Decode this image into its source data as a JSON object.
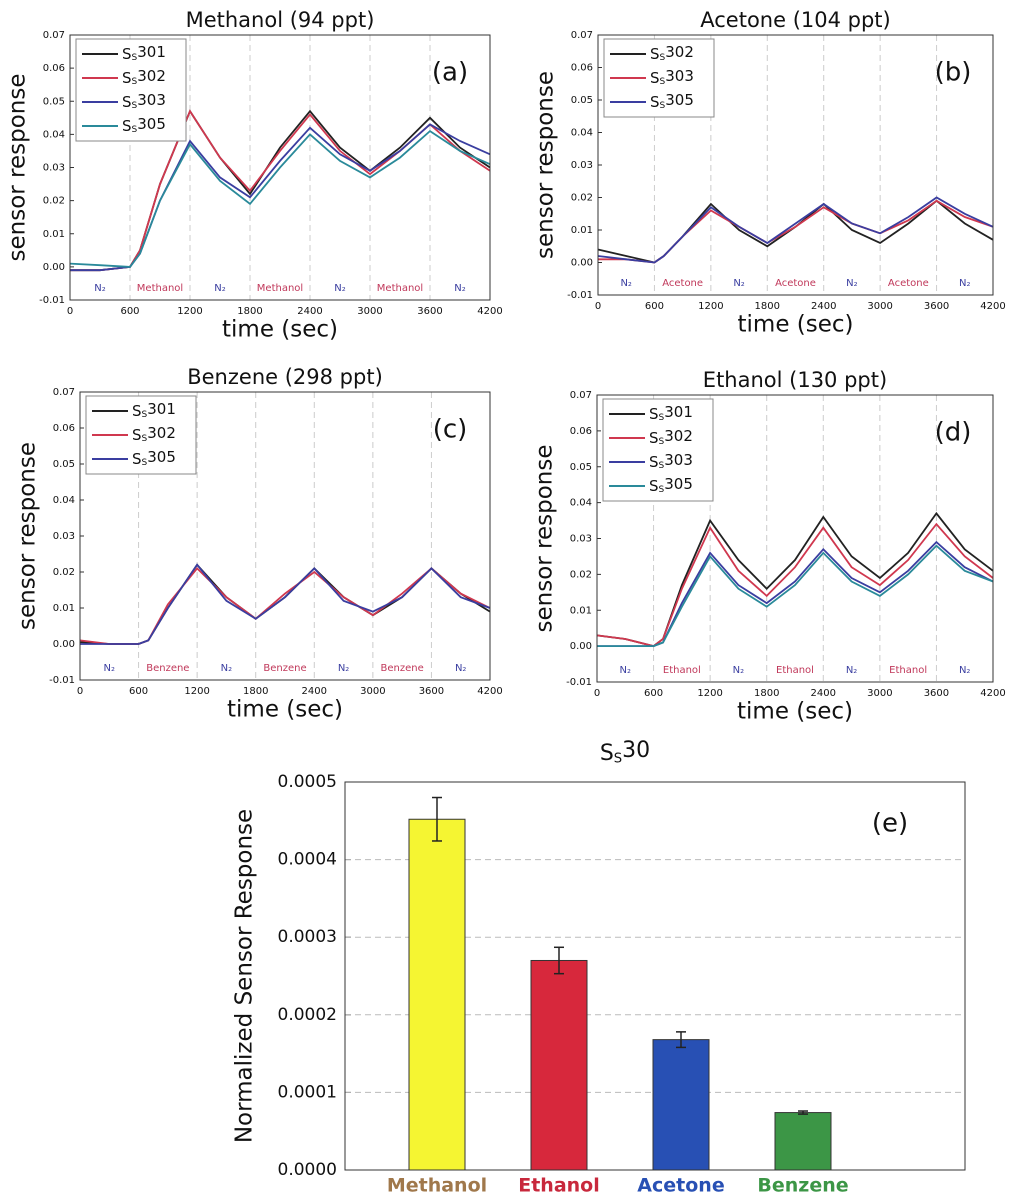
{
  "chart_data": [
    {
      "type": "line",
      "title": "Methanol (94 ppt)",
      "panel_label": "(a)",
      "x_label": "time (sec)",
      "y_label": "sensor response",
      "x": [
        0,
        300,
        600,
        700,
        900,
        1200,
        1500,
        1800,
        2100,
        2400,
        2700,
        3000,
        3300,
        3600,
        3900,
        4200
      ],
      "series": [
        {
          "name": "SS301",
          "color": "#222222",
          "values": [
            -0.001,
            -0.001,
            0,
            0.005,
            0.025,
            0.047,
            0.033,
            0.022,
            0.036,
            0.047,
            0.036,
            0.029,
            0.036,
            0.045,
            0.036,
            0.03
          ]
        },
        {
          "name": "SS302",
          "color": "#d0384f",
          "values": [
            -0.001,
            -0.001,
            0,
            0.005,
            0.025,
            0.047,
            0.033,
            0.023,
            0.035,
            0.046,
            0.035,
            0.028,
            0.035,
            0.043,
            0.035,
            0.029
          ]
        },
        {
          "name": "SS303",
          "color": "#3a3ea0",
          "values": [
            -0.001,
            -0.001,
            0,
            0.004,
            0.02,
            0.038,
            0.027,
            0.021,
            0.032,
            0.042,
            0.034,
            0.029,
            0.035,
            0.043,
            0.038,
            0.034
          ]
        },
        {
          "name": "SS305",
          "color": "#2a8a9a",
          "values": [
            0.001,
            0.0005,
            0,
            0.004,
            0.02,
            0.037,
            0.026,
            0.019,
            0.03,
            0.04,
            0.032,
            0.027,
            0.033,
            0.041,
            0.035,
            0.031
          ]
        }
      ],
      "phase_labels": [
        "N₂",
        "Methanol",
        "N₂",
        "Methanol",
        "N₂",
        "Methanol",
        "N₂"
      ],
      "xlim": [
        0,
        4200
      ],
      "xticks": [
        0,
        600,
        1200,
        1800,
        2400,
        3000,
        3600,
        4200
      ],
      "ylim": [
        -0.01,
        0.07
      ],
      "yticks": [
        -0.01,
        {
          "value": 0,
          "label": "0.00"
        },
        0.01,
        0.02,
        0.03,
        0.04,
        0.05,
        0.06,
        0.07
      ],
      "grid": true
    },
    {
      "type": "line",
      "title": "Acetone (104 ppt)",
      "panel_label": "(b)",
      "x_label": "time (sec)",
      "y_label": "sensor response",
      "x": [
        0,
        300,
        600,
        700,
        900,
        1200,
        1500,
        1800,
        2100,
        2400,
        2700,
        3000,
        3300,
        3600,
        3900,
        4200
      ],
      "series": [
        {
          "name": "SS302",
          "color": "#222222",
          "values": [
            0.004,
            0.002,
            0,
            0.002,
            0.008,
            0.018,
            0.01,
            0.005,
            0.011,
            0.018,
            0.01,
            0.006,
            0.012,
            0.019,
            0.012,
            0.007
          ]
        },
        {
          "name": "SS303",
          "color": "#d0384f",
          "values": [
            0.001,
            0.001,
            0,
            0.002,
            0.008,
            0.016,
            0.011,
            0.006,
            0.011,
            0.017,
            0.012,
            0.009,
            0.013,
            0.019,
            0.014,
            0.011
          ]
        },
        {
          "name": "SS305",
          "color": "#3a3ea0",
          "values": [
            0.002,
            0.001,
            0,
            0.002,
            0.008,
            0.017,
            0.011,
            0.006,
            0.012,
            0.018,
            0.012,
            0.009,
            0.014,
            0.02,
            0.015,
            0.011
          ]
        }
      ],
      "phase_labels": [
        "N₂",
        "Acetone",
        "N₂",
        "Acetone",
        "N₂",
        "Acetone",
        "N₂"
      ],
      "xlim": [
        0,
        4200
      ],
      "xticks": [
        0,
        600,
        1200,
        1800,
        2400,
        3000,
        3600,
        4200
      ],
      "ylim": [
        -0.01,
        0.07
      ],
      "yticks": [
        -0.01,
        {
          "value": 0,
          "label": "0.00"
        },
        0.01,
        0.02,
        0.03,
        0.04,
        0.05,
        0.06,
        0.07
      ],
      "grid": true
    },
    {
      "type": "line",
      "title": "Benzene (298 ppt)",
      "panel_label": "(c)",
      "x_label": "time (sec)",
      "y_label": "sensor response",
      "x": [
        0,
        300,
        600,
        700,
        900,
        1200,
        1500,
        1800,
        2100,
        2400,
        2700,
        3000,
        3300,
        3600,
        3900,
        4200
      ],
      "series": [
        {
          "name": "SS301",
          "color": "#222222",
          "values": [
            0.0005,
            0,
            0,
            0.001,
            0.01,
            0.022,
            0.013,
            0.007,
            0.013,
            0.021,
            0.013,
            0.008,
            0.013,
            0.021,
            0.014,
            0.009
          ]
        },
        {
          "name": "SS302",
          "color": "#d0384f",
          "values": [
            0.001,
            0,
            0,
            0.001,
            0.011,
            0.021,
            0.013,
            0.007,
            0.014,
            0.02,
            0.013,
            0.008,
            0.014,
            0.021,
            0.014,
            0.01
          ]
        },
        {
          "name": "SS305",
          "color": "#3a3ea0",
          "values": [
            0,
            0,
            0,
            0.001,
            0.01,
            0.022,
            0.012,
            0.007,
            0.013,
            0.021,
            0.012,
            0.009,
            0.013,
            0.021,
            0.013,
            0.01
          ]
        }
      ],
      "phase_labels": [
        "N₂",
        "Benzene",
        "N₂",
        "Benzene",
        "N₂",
        "Benzene",
        "N₂"
      ],
      "xlim": [
        0,
        4200
      ],
      "xticks": [
        0,
        600,
        1200,
        1800,
        2400,
        3000,
        3600,
        4200
      ],
      "ylim": [
        -0.01,
        0.07
      ],
      "yticks": [
        -0.01,
        {
          "value": 0,
          "label": "0.00"
        },
        0.01,
        0.02,
        0.03,
        0.04,
        0.05,
        0.06,
        0.07
      ],
      "grid": true
    },
    {
      "type": "line",
      "title": "Ethanol (130 ppt)",
      "panel_label": "(d)",
      "x_label": "time (sec)",
      "y_label": "sensor response",
      "x": [
        0,
        300,
        600,
        700,
        900,
        1200,
        1500,
        1800,
        2100,
        2400,
        2700,
        3000,
        3300,
        3600,
        3900,
        4200
      ],
      "series": [
        {
          "name": "SS301",
          "color": "#222222",
          "values": [
            0.003,
            0.002,
            0,
            0.002,
            0.017,
            0.035,
            0.024,
            0.016,
            0.024,
            0.036,
            0.025,
            0.019,
            0.026,
            0.037,
            0.027,
            0.021
          ]
        },
        {
          "name": "SS302",
          "color": "#d0384f",
          "values": [
            0.003,
            0.002,
            0,
            0.002,
            0.016,
            0.033,
            0.021,
            0.014,
            0.022,
            0.033,
            0.022,
            0.017,
            0.024,
            0.034,
            0.025,
            0.019
          ]
        },
        {
          "name": "SS303",
          "color": "#3a3ea0",
          "values": [
            0,
            0,
            0,
            0.001,
            0.012,
            0.026,
            0.017,
            0.012,
            0.018,
            0.027,
            0.019,
            0.015,
            0.021,
            0.029,
            0.022,
            0.018
          ]
        },
        {
          "name": "SS305",
          "color": "#2a8a9a",
          "values": [
            0,
            0,
            0,
            0.001,
            0.011,
            0.025,
            0.016,
            0.011,
            0.017,
            0.026,
            0.018,
            0.014,
            0.02,
            0.028,
            0.021,
            0.018
          ]
        }
      ],
      "phase_labels": [
        "N₂",
        "Ethanol",
        "N₂",
        "Ethanol",
        "N₂",
        "Ethanol",
        "N₂"
      ],
      "xlim": [
        0,
        4200
      ],
      "xticks": [
        0,
        600,
        1200,
        1800,
        2400,
        3000,
        3600,
        4200
      ],
      "ylim": [
        -0.01,
        0.07
      ],
      "yticks": [
        -0.01,
        {
          "value": 0,
          "label": "0.00"
        },
        0.01,
        0.02,
        0.03,
        0.04,
        0.05,
        0.06,
        0.07
      ],
      "grid": true
    },
    {
      "type": "bar",
      "title": "SS30",
      "panel_label": "(e)",
      "y_label": "Normalized Sensor Response",
      "categories": [
        "Methanol",
        "Ethanol",
        "Acetone",
        "Benzene"
      ],
      "values": [
        0.000452,
        0.00027,
        0.000168,
        7.4e-05
      ],
      "errors": [
        2.8e-05,
        1.7e-05,
        1e-05,
        2e-06
      ],
      "colors": [
        "#f5f532",
        "#d7283c",
        "#2850b4",
        "#3c9646"
      ],
      "category_colors": [
        "#a0784b",
        "#c8283c",
        "#2850b4",
        "#3c9646"
      ],
      "ylim": [
        0,
        0.0005
      ],
      "yticks": [
        {
          "value": 0,
          "label": "0.0000"
        },
        0.0001,
        0.0002,
        0.0003,
        0.0004,
        0.0005
      ],
      "grid": true
    }
  ]
}
